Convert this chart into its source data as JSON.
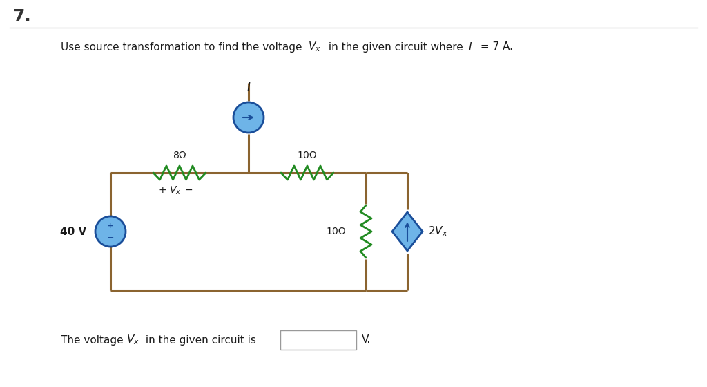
{
  "wire_color": "#8B6430",
  "resistor_color": "#228B22",
  "source_fill": "#6EB4E8",
  "source_stroke": "#1A4E9A",
  "background": "#ffffff",
  "text_color": "#1A1A1A",
  "R1": "8Ω",
  "R2": "10Ω",
  "R3": "10Ω",
  "VS_label": "40 V",
  "I_label": "I",
  "dep_label": "2V_x",
  "Vx_polarity": "+ V_x −"
}
